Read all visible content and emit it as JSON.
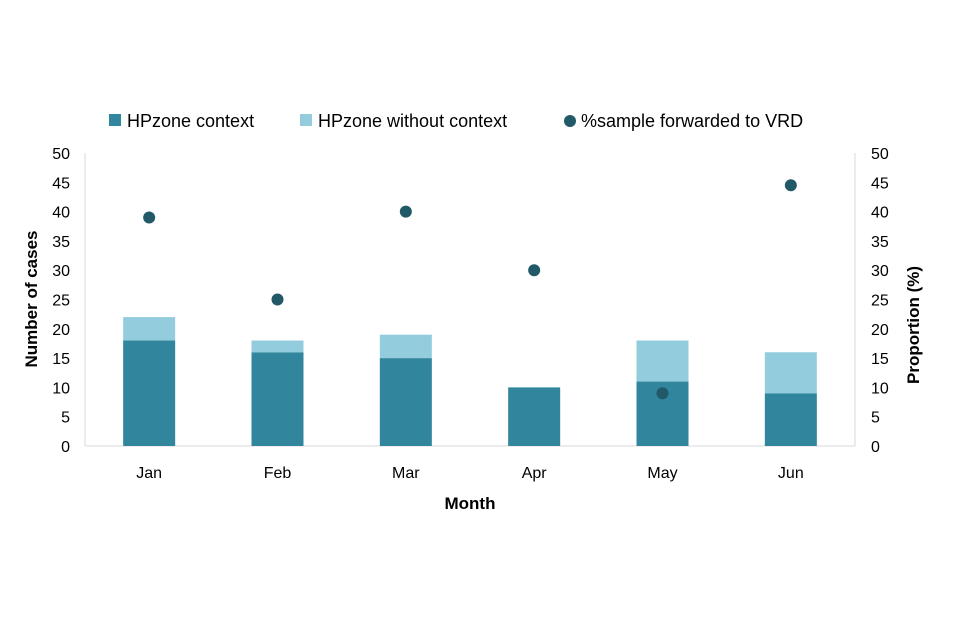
{
  "chart_data": {
    "type": "bar",
    "stacked": true,
    "categories": [
      "Jan",
      "Feb",
      "Mar",
      "Apr",
      "May",
      "Jun"
    ],
    "series": [
      {
        "name": "HPzone context",
        "kind": "bar",
        "axis": "left",
        "color": "#31859c",
        "values": [
          18,
          16,
          15,
          10,
          11,
          9
        ]
      },
      {
        "name": "HPzone without context",
        "kind": "bar",
        "axis": "left",
        "color": "#93cddd",
        "values": [
          4,
          2,
          4,
          0,
          7,
          7
        ]
      },
      {
        "name": "%sample forwarded to VRD",
        "kind": "scatter",
        "axis": "right",
        "color": "#215968",
        "values": [
          39,
          25,
          40,
          30,
          9,
          44.5
        ]
      }
    ],
    "xlabel": "Month",
    "ylabel": "Number of cases",
    "y2label": "Proportion (%)",
    "ylim": [
      0,
      50
    ],
    "y2lim": [
      0,
      50
    ],
    "yticks": [
      "0",
      "5",
      "10",
      "15",
      "20",
      "25",
      "30",
      "35",
      "40",
      "45",
      "50"
    ],
    "y2ticks": [
      "0",
      "5",
      "10",
      "15",
      "20",
      "25",
      "30",
      "35",
      "40",
      "45",
      "50"
    ],
    "grid": false,
    "legend": "top"
  }
}
